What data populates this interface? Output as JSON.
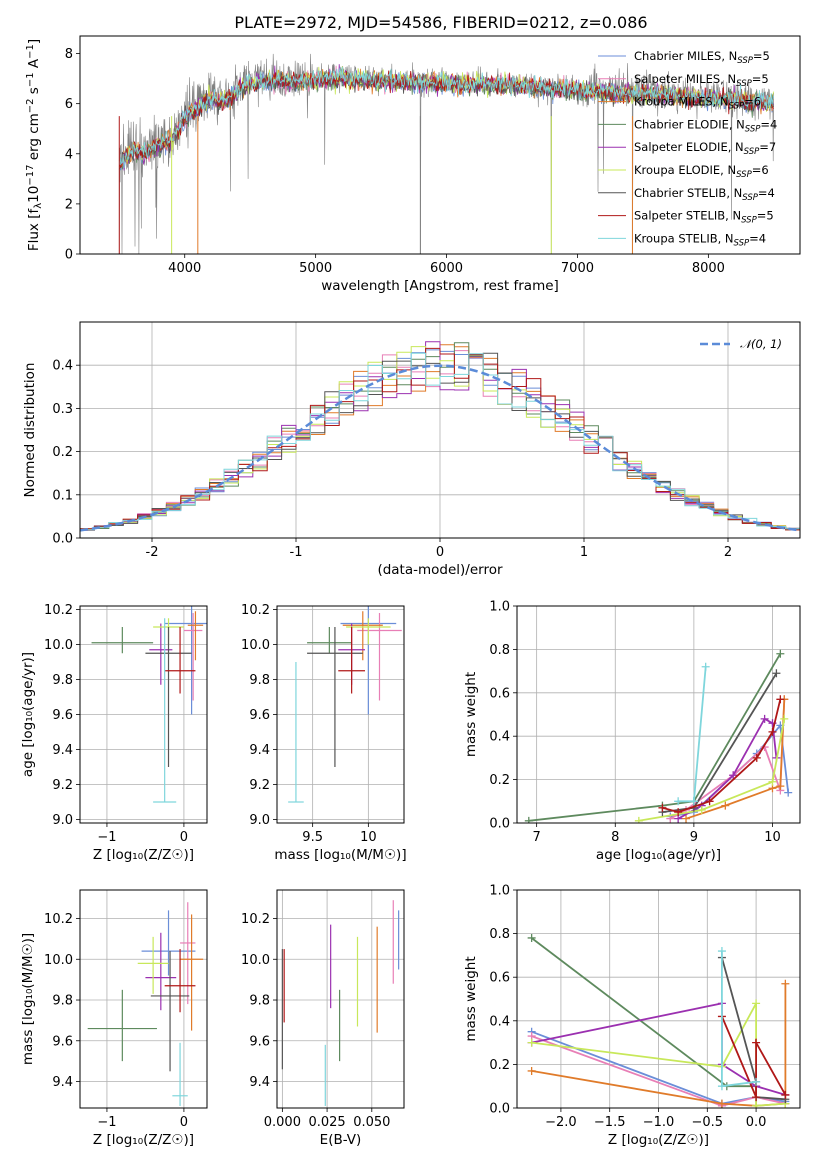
{
  "figure": {
    "title": "PLATE=2972, MJD=54586, FIBERID=0212, z=0.086"
  },
  "series_styles": [
    {
      "name": "Chabrier MILES",
      "nssp": "5",
      "color": "#6b8ed8"
    },
    {
      "name": "Salpeter MILES",
      "nssp": "5",
      "color": "#e87fb6"
    },
    {
      "name": "Kroupa MILES",
      "nssp": "6",
      "color": "#e07b2a"
    },
    {
      "name": "Chabrier ELODIE",
      "nssp": "4",
      "color": "#5e8a5e"
    },
    {
      "name": "Salpeter ELODIE",
      "nssp": "7",
      "color": "#9b30b0"
    },
    {
      "name": "Kroupa ELODIE",
      "nssp": "6",
      "color": "#c8e85a"
    },
    {
      "name": "Chabrier STELIB",
      "nssp": "4",
      "color": "#555555"
    },
    {
      "name": "Salpeter STELIB",
      "nssp": "5",
      "color": "#b01818"
    },
    {
      "name": "Kroupa STELIB",
      "nssp": "4",
      "color": "#7fd6dc"
    }
  ],
  "chart_data": [
    {
      "id": "spectrum",
      "type": "line",
      "title": "PLATE=2972, MJD=54586, FIBERID=0212, z=0.086",
      "xlabel": "wavelength [Angstrom, rest frame]",
      "ylabel": "Flux [f_λ 10^-17 erg cm^-2 s^-1 A^-1]",
      "xlim": [
        3200,
        8700
      ],
      "ylim": [
        0,
        8.7
      ],
      "xticks": [
        4000,
        5000,
        6000,
        7000,
        8000
      ],
      "yticks": [
        0,
        2,
        4,
        6,
        8
      ],
      "data_color": "#808080",
      "model_shape": {
        "x": [
          3500,
          3600,
          3700,
          3800,
          3900,
          4000,
          4100,
          4200,
          4300,
          4400,
          4500,
          4700,
          4900,
          5200,
          5500,
          6000,
          6500,
          7000,
          7500,
          8000,
          8500
        ],
        "y": [
          3.6,
          4.2,
          4.1,
          4.5,
          4.6,
          5.5,
          5.9,
          6.3,
          6.1,
          6.6,
          6.9,
          7.0,
          7.0,
          7.1,
          7.0,
          6.9,
          6.8,
          6.6,
          6.5,
          6.3,
          6.1
        ]
      },
      "legend": [
        "Chabrier MILES, N_SSP=5",
        "Salpeter MILES, N_SSP=5",
        "Kroupa MILES, N_SSP=6",
        "Chabrier ELODIE, N_SSP=4",
        "Salpeter ELODIE, N_SSP=7",
        "Kroupa ELODIE, N_SSP=6",
        "Chabrier STELIB, N_SSP=4",
        "Salpeter STELIB, N_SSP=5",
        "Kroupa STELIB, N_SSP=4"
      ],
      "legend_location": "right"
    },
    {
      "id": "residual-histogram",
      "type": "bar",
      "xlabel": "(data-model)/error",
      "ylabel": "Normed distribution",
      "xlim": [
        -2.5,
        2.5
      ],
      "ylim": [
        0,
        0.5
      ],
      "xticks": [
        -2,
        -1,
        0,
        1,
        2
      ],
      "yticks": [
        0.0,
        0.1,
        0.2,
        0.3,
        0.4
      ],
      "bin_width": 0.1,
      "reference_curve": {
        "name": "N(0,1)",
        "mean": 0,
        "sigma": 1,
        "style": "dashed",
        "color": "#5b8bd8"
      },
      "legend_location": "upper right"
    },
    {
      "id": "age-vs-Z",
      "type": "scatter",
      "xlabel": "Z [log10(Z/Z☉)]",
      "ylabel": "age [log10(age/yr)]",
      "xlim": [
        -1.35,
        0.3
      ],
      "ylim": [
        8.98,
        10.22
      ],
      "xticks": [
        -1,
        0
      ],
      "xtick_labels": [
        "−1",
        "0"
      ],
      "yticks": [
        9.0,
        9.2,
        9.4,
        9.6,
        9.8,
        10.0,
        10.2
      ],
      "points": [
        {
          "series": 0,
          "x": 0.1,
          "xerr": 0.35,
          "y": 10.12,
          "yerr": [
            0.52,
            0.12
          ]
        },
        {
          "series": 1,
          "x": 0.12,
          "xerr": 0.12,
          "y": 10.08,
          "yerr": [
            0.4,
            0.1
          ]
        },
        {
          "series": 2,
          "x": 0.15,
          "xerr": 0.1,
          "y": 10.11,
          "yerr": [
            0.2,
            0.08
          ]
        },
        {
          "series": 3,
          "x": -0.8,
          "xerr": 0.4,
          "y": 10.01,
          "yerr": [
            0.06,
            0.09
          ]
        },
        {
          "series": 4,
          "x": -0.3,
          "xerr": 0.15,
          "y": 9.97,
          "yerr": [
            0.2,
            0.15
          ]
        },
        {
          "series": 5,
          "x": -0.2,
          "xerr": 0.2,
          "y": 10.1,
          "yerr": [
            0.1,
            0.05
          ]
        },
        {
          "series": 6,
          "x": -0.2,
          "xerr": 0.3,
          "y": 9.95,
          "yerr": [
            0.65,
            0.15
          ]
        },
        {
          "series": 7,
          "x": -0.05,
          "xerr": 0.2,
          "y": 9.85,
          "yerr": [
            0.13,
            0.25
          ]
        },
        {
          "series": 8,
          "x": -0.25,
          "xerr": 0.15,
          "y": 9.1,
          "yerr": [
            0.0,
            1.05
          ]
        }
      ]
    },
    {
      "id": "age-vs-mass",
      "type": "scatter",
      "xlabel": "mass [log10(M/M☉)]",
      "ylabel": "",
      "xlim": [
        9.18,
        10.32
      ],
      "ylim": [
        8.98,
        10.22
      ],
      "xticks": [
        9.5,
        10.0
      ],
      "yticks": [
        9.0,
        9.2,
        9.4,
        9.6,
        9.8,
        10.0,
        10.2
      ],
      "points": [
        {
          "series": 0,
          "x": 10.0,
          "xerr": 0.25,
          "y": 10.12,
          "yerr": [
            0.52,
            0.12
          ]
        },
        {
          "series": 1,
          "x": 10.1,
          "xerr": 0.2,
          "y": 10.08,
          "yerr": [
            0.4,
            0.1
          ]
        },
        {
          "series": 2,
          "x": 9.95,
          "xerr": 0.18,
          "y": 10.11,
          "yerr": [
            0.2,
            0.08
          ]
        },
        {
          "series": 3,
          "x": 9.65,
          "xerr": 0.2,
          "y": 10.01,
          "yerr": [
            0.06,
            0.09
          ]
        },
        {
          "series": 4,
          "x": 9.85,
          "xerr": 0.12,
          "y": 9.97,
          "yerr": [
            0.2,
            0.15
          ]
        },
        {
          "series": 5,
          "x": 10.0,
          "xerr": 0.2,
          "y": 10.1,
          "yerr": [
            0.1,
            0.05
          ]
        },
        {
          "series": 6,
          "x": 9.7,
          "xerr": 0.25,
          "y": 9.95,
          "yerr": [
            0.65,
            0.15
          ]
        },
        {
          "series": 7,
          "x": 9.85,
          "xerr": 0.12,
          "y": 9.85,
          "yerr": [
            0.13,
            0.25
          ]
        },
        {
          "series": 8,
          "x": 9.35,
          "xerr": 0.07,
          "y": 9.1,
          "yerr": [
            0.0,
            0.8
          ]
        }
      ]
    },
    {
      "id": "massweight-vs-age",
      "type": "line",
      "xlabel": "age [log10(age/yr)]",
      "ylabel": "mass weight",
      "xlim": [
        6.75,
        10.35
      ],
      "ylim": [
        0,
        1.0
      ],
      "xticks": [
        7,
        8,
        9,
        10
      ],
      "yticks": [
        0.0,
        0.2,
        0.4,
        0.6,
        0.8,
        1.0
      ],
      "series": [
        {
          "style": 0,
          "x": [
            8.7,
            9.0,
            9.8,
            10.1,
            10.2
          ],
          "y": [
            0.03,
            0.05,
            0.32,
            0.45,
            0.14
          ]
        },
        {
          "style": 1,
          "x": [
            8.7,
            8.9,
            9.5,
            9.9,
            10.1,
            10.15
          ],
          "y": [
            0.02,
            0.06,
            0.22,
            0.35,
            0.15,
            0.57
          ]
        },
        {
          "style": 2,
          "x": [
            8.9,
            9.4,
            10.0,
            10.1,
            10.15
          ],
          "y": [
            0.02,
            0.08,
            0.16,
            0.17,
            0.57
          ]
        },
        {
          "style": 3,
          "x": [
            6.9,
            8.6,
            9.0,
            10.1
          ],
          "y": [
            0.01,
            0.08,
            0.1,
            0.78
          ]
        },
        {
          "style": 4,
          "x": [
            8.8,
            9.1,
            9.5,
            9.9,
            10.0,
            10.05
          ],
          "y": [
            0.02,
            0.08,
            0.22,
            0.48,
            0.46,
            0.3
          ]
        },
        {
          "style": 5,
          "x": [
            8.3,
            9.1,
            10.0,
            10.15
          ],
          "y": [
            0.01,
            0.06,
            0.19,
            0.48
          ]
        },
        {
          "style": 6,
          "x": [
            8.6,
            9.0,
            10.05
          ],
          "y": [
            0.05,
            0.07,
            0.69
          ]
        },
        {
          "style": 7,
          "x": [
            8.6,
            8.8,
            9.2,
            9.8,
            10.0,
            10.1
          ],
          "y": [
            0.07,
            0.05,
            0.1,
            0.3,
            0.42,
            0.57
          ]
        },
        {
          "style": 8,
          "x": [
            8.8,
            9.0,
            9.15
          ],
          "y": [
            0.1,
            0.1,
            0.72
          ]
        }
      ]
    },
    {
      "id": "mass-vs-Z",
      "type": "scatter",
      "xlabel": "Z [log10(Z/Z☉)]",
      "ylabel": "mass [log10(M/M☉)]",
      "xlim": [
        -1.35,
        0.3
      ],
      "ylim": [
        9.27,
        10.34
      ],
      "xticks": [
        -1,
        0
      ],
      "xtick_labels": [
        "−1",
        "0"
      ],
      "yticks": [
        9.4,
        9.6,
        9.8,
        10.0,
        10.2
      ],
      "points": [
        {
          "series": 0,
          "x": -0.2,
          "xerr": 0.35,
          "y": 10.04,
          "yerr": [
            0.12,
            0.2
          ]
        },
        {
          "series": 1,
          "x": 0.05,
          "xerr": 0.1,
          "y": 10.08,
          "yerr": [
            0.3,
            0.2
          ]
        },
        {
          "series": 2,
          "x": 0.1,
          "xerr": 0.15,
          "y": 10.0,
          "yerr": [
            0.35,
            0.22
          ]
        },
        {
          "series": 3,
          "x": -0.8,
          "xerr": 0.45,
          "y": 9.66,
          "yerr": [
            0.16,
            0.19
          ]
        },
        {
          "series": 4,
          "x": -0.3,
          "xerr": 0.2,
          "y": 9.91,
          "yerr": [
            0.16,
            0.22
          ]
        },
        {
          "series": 5,
          "x": -0.4,
          "xerr": 0.2,
          "y": 9.98,
          "yerr": [
            0.15,
            0.13
          ]
        },
        {
          "series": 6,
          "x": -0.18,
          "xerr": 0.25,
          "y": 9.82,
          "yerr": [
            0.37,
            0.22
          ]
        },
        {
          "series": 7,
          "x": -0.05,
          "xerr": 0.2,
          "y": 9.87,
          "yerr": [
            0.13,
            0.18
          ]
        },
        {
          "series": 8,
          "x": -0.05,
          "xerr": 0.1,
          "y": 9.33,
          "yerr": [
            0.05,
            0.26
          ]
        }
      ]
    },
    {
      "id": "mass-vs-EBV",
      "type": "scatter",
      "xlabel": "E(B-V)",
      "ylabel": "",
      "xlim": [
        -0.003,
        0.068
      ],
      "ylim": [
        9.27,
        10.34
      ],
      "xticks": [
        0.0,
        0.025,
        0.05
      ],
      "xtick_labels": [
        "0.000",
        "0.025",
        "0.050"
      ],
      "yticks": [
        9.4,
        9.6,
        9.8,
        10.0,
        10.2
      ],
      "points": [
        {
          "series": 0,
          "x": 0.065,
          "y": 10.1,
          "yerr": [
            0.15,
            0.14
          ]
        },
        {
          "series": 1,
          "x": 0.062,
          "y": 10.14,
          "yerr": [
            0.26,
            0.15
          ]
        },
        {
          "series": 2,
          "x": 0.053,
          "y": 9.9,
          "yerr": [
            0.26,
            0.26
          ]
        },
        {
          "series": 3,
          "x": 0.032,
          "y": 9.67,
          "yerr": [
            0.17,
            0.18
          ]
        },
        {
          "series": 4,
          "x": 0.027,
          "y": 9.97,
          "yerr": [
            0.21,
            0.2
          ]
        },
        {
          "series": 5,
          "x": 0.042,
          "y": 9.91,
          "yerr": [
            0.24,
            0.2
          ]
        },
        {
          "series": 6,
          "x": 0.0,
          "y": 9.76,
          "yerr": [
            0.3,
            0.29
          ]
        },
        {
          "series": 7,
          "x": 0.001,
          "y": 9.87,
          "yerr": [
            0.18,
            0.18
          ]
        },
        {
          "series": 8,
          "x": 0.024,
          "y": 9.41,
          "yerr": [
            0.13,
            0.17
          ]
        }
      ]
    },
    {
      "id": "massweight-vs-Z",
      "type": "line",
      "xlabel": "Z [log10(Z/Z☉)]",
      "ylabel": "mass weight",
      "xlim": [
        -2.45,
        0.45
      ],
      "ylim": [
        0,
        1.0
      ],
      "xticks": [
        -2.0,
        -1.5,
        -1.0,
        -0.5,
        0.0
      ],
      "xtick_labels": [
        "−2.0",
        "−1.5",
        "−1.0",
        "−0.5",
        "0.0"
      ],
      "yticks": [
        0.0,
        0.2,
        0.4,
        0.6,
        0.8,
        1.0
      ],
      "series": [
        {
          "style": 0,
          "x": [
            -2.3,
            -0.35,
            0.0,
            0.3
          ],
          "y": [
            0.35,
            0.02,
            0.05,
            0.03
          ]
        },
        {
          "style": 1,
          "x": [
            -2.3,
            -0.35,
            0.0,
            0.3
          ],
          "y": [
            0.33,
            0.01,
            0.05,
            0.02
          ]
        },
        {
          "style": 2,
          "x": [
            -2.3,
            -0.35,
            0.0,
            0.3,
            0.3
          ],
          "y": [
            0.17,
            0.02,
            0.01,
            0.02,
            0.57
          ]
        },
        {
          "style": 3,
          "x": [
            -2.3,
            -0.3,
            0.0
          ],
          "y": [
            0.78,
            0.1,
            0.1
          ]
        },
        {
          "style": 4,
          "x": [
            -2.3,
            -0.35,
            -0.35,
            0.0,
            0.3
          ],
          "y": [
            0.3,
            0.48,
            0.2,
            0.1,
            0.06
          ]
        },
        {
          "style": 5,
          "x": [
            -2.3,
            -0.35,
            0.0,
            0.0,
            0.3
          ],
          "y": [
            0.3,
            0.19,
            0.48,
            0.01,
            0.02
          ]
        },
        {
          "style": 6,
          "x": [
            -0.35,
            0.0,
            0.0,
            0.3
          ],
          "y": [
            0.69,
            0.12,
            0.05,
            0.04
          ]
        },
        {
          "style": 7,
          "x": [
            -0.35,
            0.0,
            0.0,
            0.3
          ],
          "y": [
            0.42,
            0.05,
            0.3,
            0.06
          ]
        },
        {
          "style": 8,
          "x": [
            -0.35,
            -0.35,
            0.0
          ],
          "y": [
            0.72,
            0.1,
            0.12
          ]
        }
      ]
    }
  ]
}
